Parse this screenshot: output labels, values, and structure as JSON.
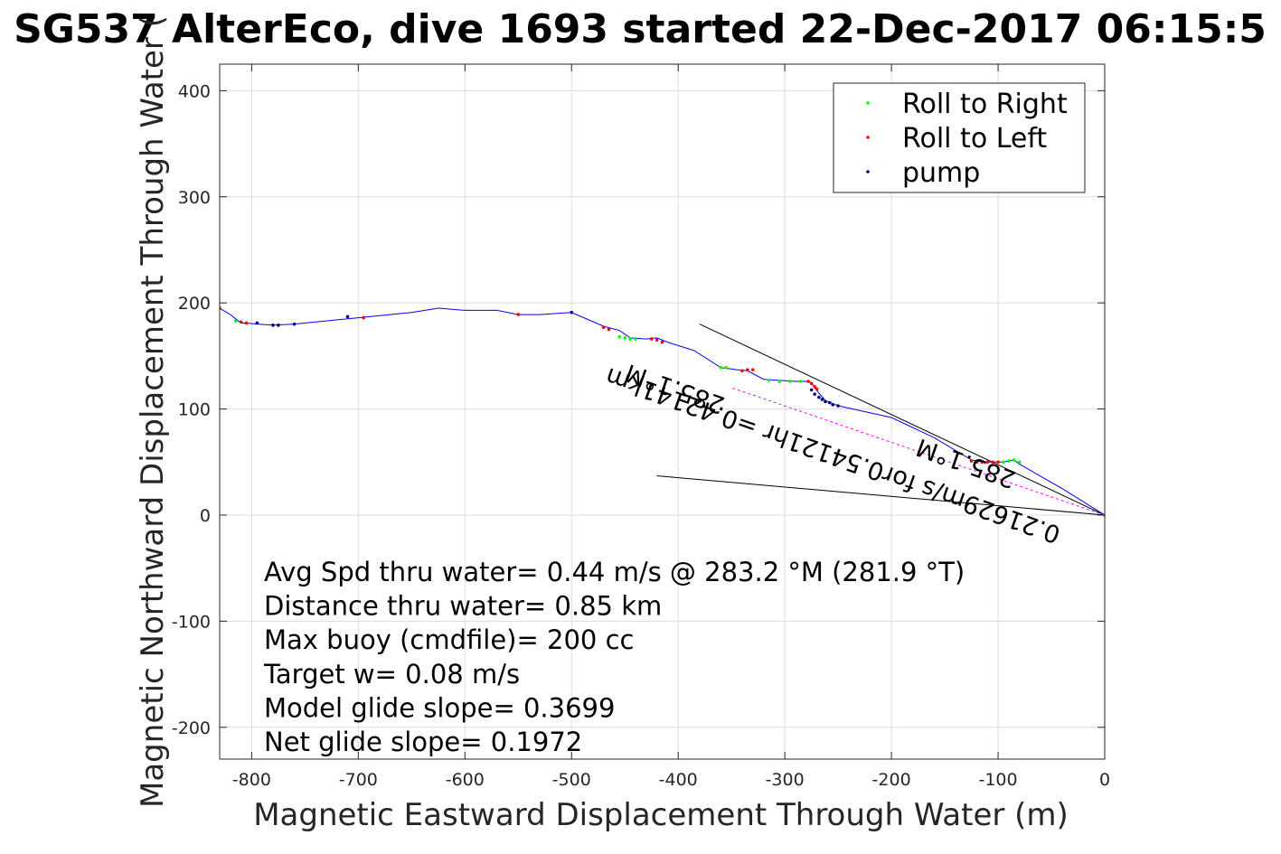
{
  "chart_data": {
    "type": "line",
    "title": "SG537 AlterEco, dive 1693 started 22-Dec-2017 06:15:5",
    "xlabel": "Magnetic Eastward Displacement Through Water (m)",
    "ylabel": "Magnetic Northward Displacement Through Water (",
    "xlim": [
      -830,
      0
    ],
    "ylim": [
      -230,
      425
    ],
    "xticks": [
      -800,
      -700,
      -600,
      -500,
      -400,
      -300,
      -200,
      -100,
      0
    ],
    "yticks": [
      -200,
      -100,
      0,
      100,
      200,
      300,
      400
    ],
    "grid": true,
    "legend_position": "top-right",
    "legend": [
      {
        "label": "Roll to Right",
        "color": "#00ff00"
      },
      {
        "label": "Roll to Left",
        "color": "#ff0000"
      },
      {
        "label": "pump",
        "color": "#000080"
      }
    ],
    "track": {
      "color": "#0000ff",
      "x": [
        0,
        -40,
        -80,
        -85,
        -95,
        -100,
        -115,
        -125,
        -160,
        -200,
        -250,
        -262,
        -268,
        -272,
        -275,
        -280,
        -290,
        -320,
        -335,
        -345,
        -360,
        -385,
        -410,
        -420,
        -430,
        -445,
        -455,
        -470,
        -500,
        -530,
        -550,
        -570,
        -600,
        -625,
        -650,
        -700,
        -760,
        -780,
        -795,
        -805,
        -810,
        -815,
        -820,
        -830
      ],
      "y": [
        0,
        25,
        48,
        52,
        50,
        50,
        50,
        52,
        73,
        92,
        103,
        108,
        115,
        120,
        125,
        126,
        126,
        128,
        136,
        137,
        139,
        155,
        163,
        167,
        166,
        167,
        174,
        178,
        191,
        189,
        189,
        193,
        193,
        195,
        191,
        186,
        180,
        179,
        180,
        181,
        181,
        185,
        189,
        195
      ]
    },
    "series": [
      {
        "name": "Roll to Right",
        "color": "#00ff00",
        "x": [
          -80,
          -85,
          -90,
          -95,
          -285,
          -295,
          -305,
          -315,
          -355,
          -360,
          -440,
          -445,
          -450,
          -455,
          -815
        ],
        "y": [
          50,
          52,
          51,
          50,
          126,
          126,
          126,
          127,
          139,
          139,
          166,
          166,
          167,
          168,
          183
        ]
      },
      {
        "name": "Roll to Left",
        "color": "#ff0000",
        "x": [
          0,
          -100,
          -105,
          -110,
          -115,
          -120,
          -125,
          -270,
          -272,
          -275,
          -278,
          -330,
          -335,
          -340,
          -415,
          -420,
          -425,
          -465,
          -470,
          -550,
          -695,
          -805,
          -810,
          -830
        ],
        "y": [
          0,
          50,
          50,
          50,
          50,
          50,
          51,
          119,
          121,
          124,
          126,
          137,
          137,
          136,
          163,
          165,
          166,
          175,
          177,
          189,
          186,
          181,
          182,
          195
        ]
      },
      {
        "name": "pump",
        "color": "#000080",
        "x": [
          -250,
          -255,
          -258,
          -262,
          -265,
          -268,
          -272,
          -275,
          -500,
          -710,
          -760,
          -775,
          -780,
          -795
        ],
        "y": [
          103,
          104,
          106,
          107,
          109,
          111,
          114,
          118,
          191,
          187,
          180,
          179,
          179,
          181
        ]
      }
    ],
    "current_line": {
      "color": "#ff00ff",
      "x": [
        0,
        -350
      ],
      "y": [
        0,
        120
      ]
    },
    "cone_lines": [
      {
        "color": "#000000",
        "x": [
          0,
          -380
        ],
        "y": [
          0,
          180
        ]
      },
      {
        "color": "#000000",
        "x": [
          0,
          -420
        ],
        "y": [
          0,
          37
        ]
      }
    ],
    "annotations": [
      {
        "text": "285.1°M",
        "x": -82,
        "y": 40,
        "rotation": 199.5
      },
      {
        "text": "0.21629m/s for0.54121hr =0.42141km",
        "x": -40,
        "y": -12,
        "rotation": 199.5
      },
      {
        "text": "285.1°M",
        "x": -355,
        "y": 110,
        "rotation": 199.5
      }
    ],
    "stats": [
      "Avg Spd thru water=  0.44 m/s @ 283.2 °M (281.9 °T)",
      "Distance thru water=  0.85 km",
      "Max buoy (cmdfile)= 200 cc",
      "Target w= 0.08 m/s",
      "Model glide slope= 0.3699",
      "Net glide slope= 0.1972"
    ]
  }
}
